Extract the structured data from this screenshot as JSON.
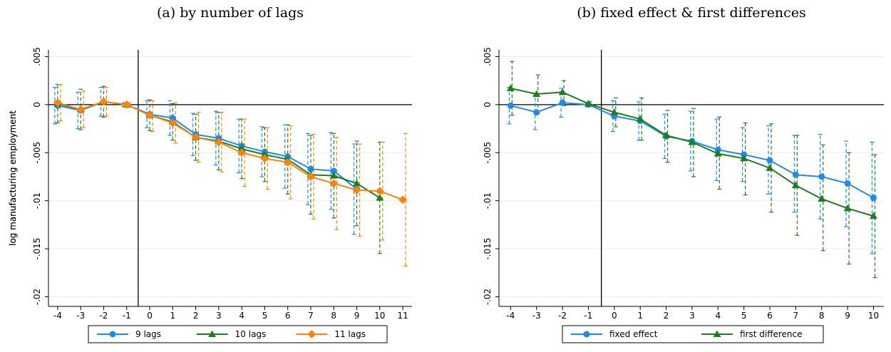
{
  "chart_data": [
    {
      "type": "line",
      "title": "(a) by number of lags",
      "ylabel": "log manufacturing employment",
      "xlim": [
        -4.4,
        11.4
      ],
      "ylim": [
        -0.021,
        0.0057
      ],
      "xticks": [
        -4,
        -3,
        -2,
        -1,
        0,
        1,
        2,
        3,
        4,
        5,
        6,
        7,
        8,
        9,
        10,
        11
      ],
      "yticks": [
        {
          "value": 0.005,
          "label": ".005"
        },
        0,
        {
          "value": -0.005,
          "label": "-.005"
        },
        {
          "value": -0.01,
          "label": "-.01"
        },
        {
          "value": -0.015,
          "label": "-.015"
        },
        {
          "value": -0.02,
          "label": "-.02"
        }
      ],
      "grid": true,
      "reference_x": -0.5,
      "reference_y": 0,
      "legend": "bottom",
      "series": [
        {
          "name": "9 lags",
          "color": "#1f8be6",
          "marker": "circle",
          "x": [
            -4,
            -3,
            -2,
            -1,
            0,
            1,
            2,
            3,
            4,
            5,
            6,
            7,
            8,
            9
          ],
          "values": [
            -0.0001,
            -0.0006,
            0.0003,
            0,
            -0.001,
            -0.0014,
            -0.0031,
            -0.0035,
            -0.0043,
            -0.0049,
            -0.0054,
            -0.0067,
            -0.0069,
            -0.0088
          ],
          "ci_low": [
            -0.002,
            -0.0025,
            -0.0012,
            -0.0002,
            -0.0024,
            -0.0032,
            -0.0053,
            -0.0063,
            -0.0071,
            -0.0075,
            -0.0087,
            -0.0104,
            -0.0109,
            -0.0135
          ],
          "ci_high": [
            0.0018,
            0.0013,
            0.0018,
            0.0002,
            0.0004,
            0.0004,
            -0.0009,
            -0.0007,
            -0.0015,
            -0.0023,
            -0.0021,
            -0.003,
            -0.0029,
            -0.0041
          ]
        },
        {
          "name": "10 lags",
          "color": "#1e7d1e",
          "marker": "triangle",
          "x": [
            -4,
            -3,
            -2,
            -1,
            0,
            1,
            2,
            3,
            4,
            5,
            6,
            7,
            8,
            9,
            10
          ],
          "values": [
            0.0001,
            -0.0005,
            0.0003,
            0,
            -0.0011,
            -0.0018,
            -0.0034,
            -0.0038,
            -0.0046,
            -0.0052,
            -0.0057,
            -0.0073,
            -0.0074,
            -0.0082,
            -0.0097
          ],
          "ci_low": [
            -0.0019,
            -0.0026,
            -0.0013,
            -0.0002,
            -0.0027,
            -0.0037,
            -0.0058,
            -0.0068,
            -0.0077,
            -0.008,
            -0.0093,
            -0.0114,
            -0.0118,
            -0.0126,
            -0.0155
          ],
          "ci_high": [
            0.0021,
            0.0016,
            0.0019,
            0.0002,
            0.0005,
            0.0001,
            -0.001,
            -0.0008,
            -0.0015,
            -0.0024,
            -0.0021,
            -0.0032,
            -0.003,
            -0.0038,
            -0.0039
          ]
        },
        {
          "name": "11 lags",
          "color": "#f7840e",
          "marker": "diamond",
          "x": [
            -4,
            -3,
            -2,
            -1,
            0,
            1,
            2,
            3,
            4,
            5,
            6,
            7,
            8,
            9,
            10,
            11
          ],
          "values": [
            0.0002,
            -0.0005,
            0.0003,
            0,
            -0.0011,
            -0.0019,
            -0.0034,
            -0.0039,
            -0.005,
            -0.0056,
            -0.006,
            -0.0075,
            -0.0082,
            -0.0089,
            -0.009,
            -0.0099
          ],
          "ci_low": [
            -0.0017,
            -0.0024,
            -0.0012,
            -0.0002,
            -0.0028,
            -0.004,
            -0.006,
            -0.007,
            -0.0085,
            -0.0088,
            -0.0098,
            -0.0119,
            -0.013,
            -0.0137,
            -0.0141,
            -0.0168
          ],
          "ci_high": [
            0.0021,
            0.0014,
            0.0018,
            0.0002,
            0.0004,
            0.0002,
            -0.0008,
            -0.0008,
            -0.0015,
            -0.0024,
            -0.0022,
            -0.0031,
            -0.0034,
            -0.0041,
            -0.0039,
            -0.003
          ]
        }
      ]
    },
    {
      "type": "line",
      "title": "(b) fixed effect & first differences",
      "ylabel": "log manufacturing employment",
      "xlim": [
        -4.45,
        10.4
      ],
      "ylim": [
        -0.021,
        0.0057
      ],
      "xticks": [
        -4,
        -3,
        -2,
        -1,
        0,
        1,
        2,
        3,
        4,
        5,
        6,
        7,
        8,
        9,
        10
      ],
      "yticks": [
        {
          "value": 0.005,
          "label": ".005"
        },
        0,
        {
          "value": -0.005,
          "label": "-.005"
        },
        {
          "value": -0.01,
          "label": "-.01"
        },
        {
          "value": -0.015,
          "label": "-.015"
        },
        {
          "value": -0.02,
          "label": "-.02"
        }
      ],
      "grid": true,
      "reference_x": -0.5,
      "reference_y": 0,
      "legend": "bottom",
      "series": [
        {
          "name": "fixed effect",
          "color": "#1f8be6",
          "marker": "circle",
          "x": [
            -4,
            -3,
            -2,
            -1,
            0,
            1,
            2,
            3,
            4,
            5,
            6,
            7,
            8,
            9,
            10
          ],
          "values": [
            -0.0001,
            -0.0008,
            0.0002,
            0,
            -0.0012,
            -0.0017,
            -0.0033,
            -0.0038,
            -0.0047,
            -0.0052,
            -0.0058,
            -0.0073,
            -0.0075,
            -0.0082,
            -0.0097
          ],
          "ci_low": [
            -0.002,
            -0.0026,
            -0.0013,
            -0.0002,
            -0.0028,
            -0.0037,
            -0.0056,
            -0.0069,
            -0.0079,
            -0.008,
            -0.0093,
            -0.0112,
            -0.0119,
            -0.0127,
            -0.0155
          ],
          "ci_high": [
            0.0018,
            0.001,
            0.0017,
            0.0002,
            0.0004,
            0.0003,
            -0.001,
            -0.0007,
            -0.0015,
            -0.0024,
            -0.0022,
            -0.0032,
            -0.0031,
            -0.0038,
            -0.0039
          ]
        },
        {
          "name": "first difference",
          "color": "#1e7d1e",
          "marker": "triangle",
          "x": [
            -4,
            -3,
            -2,
            -1,
            0,
            1,
            2,
            3,
            4,
            5,
            6,
            7,
            8,
            9,
            10
          ],
          "values": [
            0.0017,
            0.0011,
            0.0013,
            0.0001,
            -0.0008,
            -0.0015,
            -0.0032,
            -0.0039,
            -0.0051,
            -0.0056,
            -0.0066,
            -0.0084,
            -0.0098,
            -0.0108,
            -0.0116
          ],
          "ci_low": [
            -0.0011,
            -0.0009,
            -0.0001,
            -0.0001,
            -0.0023,
            -0.0037,
            -0.006,
            -0.0075,
            -0.0088,
            -0.0094,
            -0.0112,
            -0.0136,
            -0.0152,
            -0.0166,
            -0.018
          ],
          "ci_high": [
            0.0045,
            0.0031,
            0.0025,
            0.0003,
            0.0007,
            0.0007,
            -0.0006,
            -0.0004,
            -0.0013,
            -0.0019,
            -0.002,
            -0.0032,
            -0.0042,
            -0.005,
            -0.0052
          ]
        }
      ]
    }
  ]
}
